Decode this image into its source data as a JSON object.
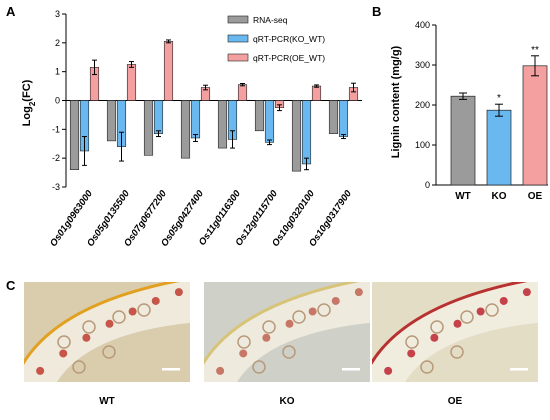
{
  "panels": {
    "a": "A",
    "b": "B",
    "c": "C"
  },
  "chart_data": [
    {
      "type": "bar",
      "ylabel_base": "Log",
      "ylabel_sub": "2",
      "ylabel_tail": "(FC)",
      "ylim": [
        -3,
        3
      ],
      "yticks": [
        -3,
        -2,
        -1,
        0,
        1,
        2,
        3
      ],
      "categories": [
        "Os01g0963000",
        "Os05g0135500",
        "Os07g0677200",
        "Os05g0427400",
        "Os11g0116300",
        "Os12g0115700",
        "Os10g0320100",
        "Os10g0317900"
      ],
      "legend_position": "top-right",
      "series": [
        {
          "name": "RNA-seq",
          "color": "#9b9b9b",
          "values": [
            -2.4,
            -1.4,
            -1.9,
            -2.0,
            -1.65,
            -1.05,
            -2.45,
            -1.15
          ],
          "errors": [
            0,
            0,
            0,
            0,
            0,
            0,
            0,
            0
          ]
        },
        {
          "name": "qRT-PCR(KO_WT)",
          "color": "#6ab8f0",
          "values": [
            -1.75,
            -1.6,
            -1.15,
            -1.3,
            -1.35,
            -1.45,
            -2.2,
            -1.25
          ],
          "errors": [
            0.5,
            0.5,
            0.1,
            0.12,
            0.3,
            0.08,
            0.2,
            0.07
          ]
        },
        {
          "name": "qRT-PCR(OE_WT)",
          "color": "#f4a0a0",
          "values": [
            1.15,
            1.25,
            2.05,
            0.45,
            0.55,
            -0.25,
            0.5,
            0.45
          ],
          "errors": [
            0.25,
            0.1,
            0.05,
            0.08,
            0.04,
            0.1,
            0.04,
            0.15
          ]
        }
      ]
    },
    {
      "type": "bar",
      "ylabel": "Lignin content (mg/g)",
      "ylim": [
        0,
        400
      ],
      "yticks": [
        0,
        100,
        200,
        300,
        400
      ],
      "categories": [
        "WT",
        "KO",
        "OE"
      ],
      "values": [
        222,
        187,
        298
      ],
      "errors": [
        8,
        15,
        25
      ],
      "colors": [
        "#9b9b9b",
        "#6ab8f0",
        "#f4a0a0"
      ],
      "significance": [
        "",
        "*",
        "**"
      ]
    }
  ],
  "micrographs": [
    {
      "label": "WT",
      "bg": "#d9cdae",
      "rim": "#e2a020",
      "dot": "#c2453a"
    },
    {
      "label": "KO",
      "bg": "#cfd0c8",
      "rim": "#d7c478",
      "dot": "#c26a5a"
    },
    {
      "label": "OE",
      "bg": "#e4ddc6",
      "rim": "#b83030",
      "dot": "#c0303a"
    }
  ]
}
